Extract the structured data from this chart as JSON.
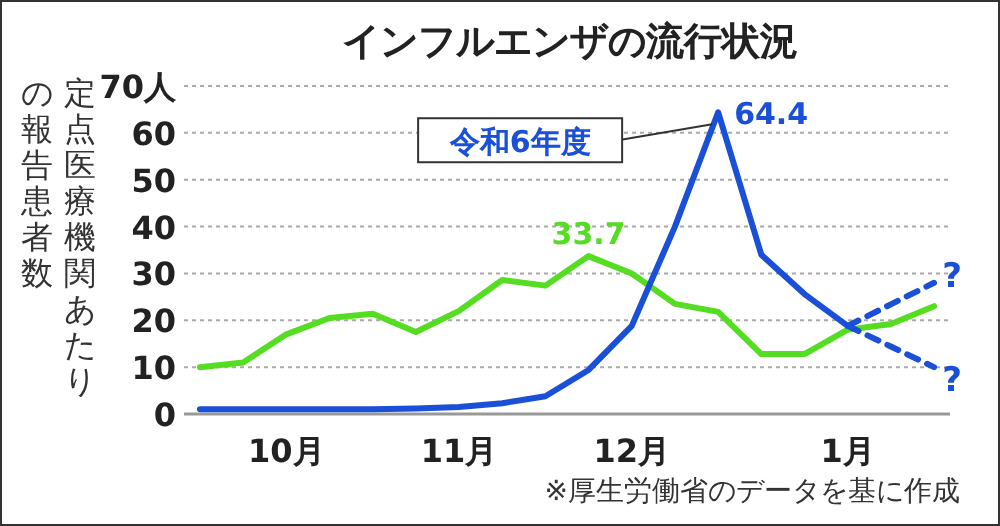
{
  "chart_data": {
    "type": "line",
    "title": "インフルエンザの流行状況",
    "ylabel": "定点医療機関あたりの報告患者数",
    "categories": [
      null,
      null,
      "10月",
      null,
      null,
      null,
      "11月",
      null,
      null,
      null,
      "12月",
      null,
      null,
      null,
      null,
      "1月",
      null,
      null
    ],
    "ylim": [
      0,
      70
    ],
    "yticks": [
      0,
      10,
      20,
      30,
      40,
      50,
      60,
      {
        "value": 70,
        "label": "70人"
      }
    ],
    "grid": "y",
    "series": [
      {
        "color": "#55dd22",
        "values": [
          10,
          11,
          17,
          20.5,
          21.4,
          17.5,
          22,
          28.6,
          27.4,
          33.7,
          30,
          23.5,
          21.8,
          12.8,
          12.8,
          18,
          19.2,
          23
        ],
        "value_labels": [
          null,
          null,
          null,
          null,
          null,
          null,
          null,
          null,
          null,
          "33.7",
          null,
          null,
          null,
          null,
          null,
          null,
          null,
          null
        ]
      },
      {
        "name": "令和6年度",
        "color": "#1a4fd8",
        "values": [
          1,
          1,
          1,
          1,
          1,
          1.2,
          1.5,
          2.3,
          3.8,
          9.4,
          18.8,
          40,
          64.4,
          34,
          25.6,
          18.8,
          null,
          null
        ],
        "value_labels": [
          null,
          null,
          null,
          null,
          null,
          null,
          null,
          null,
          null,
          null,
          null,
          null,
          "64.4",
          null,
          null,
          null,
          null,
          null
        ]
      },
      {
        "color": "#1a4fd8",
        "line_style": "dashed",
        "values": [
          null,
          null,
          null,
          null,
          null,
          null,
          null,
          null,
          null,
          null,
          null,
          null,
          null,
          null,
          null,
          18.8,
          23.4,
          28
        ]
      },
      {
        "color": "#1a4fd8",
        "line_style": "dashed",
        "values": [
          null,
          null,
          null,
          null,
          null,
          null,
          null,
          null,
          null,
          null,
          null,
          null,
          null,
          null,
          null,
          18.8,
          14.4,
          10
        ]
      }
    ],
    "annotations": [
      "?",
      "?",
      "※厚生労働省のデータを基に作成"
    ]
  }
}
